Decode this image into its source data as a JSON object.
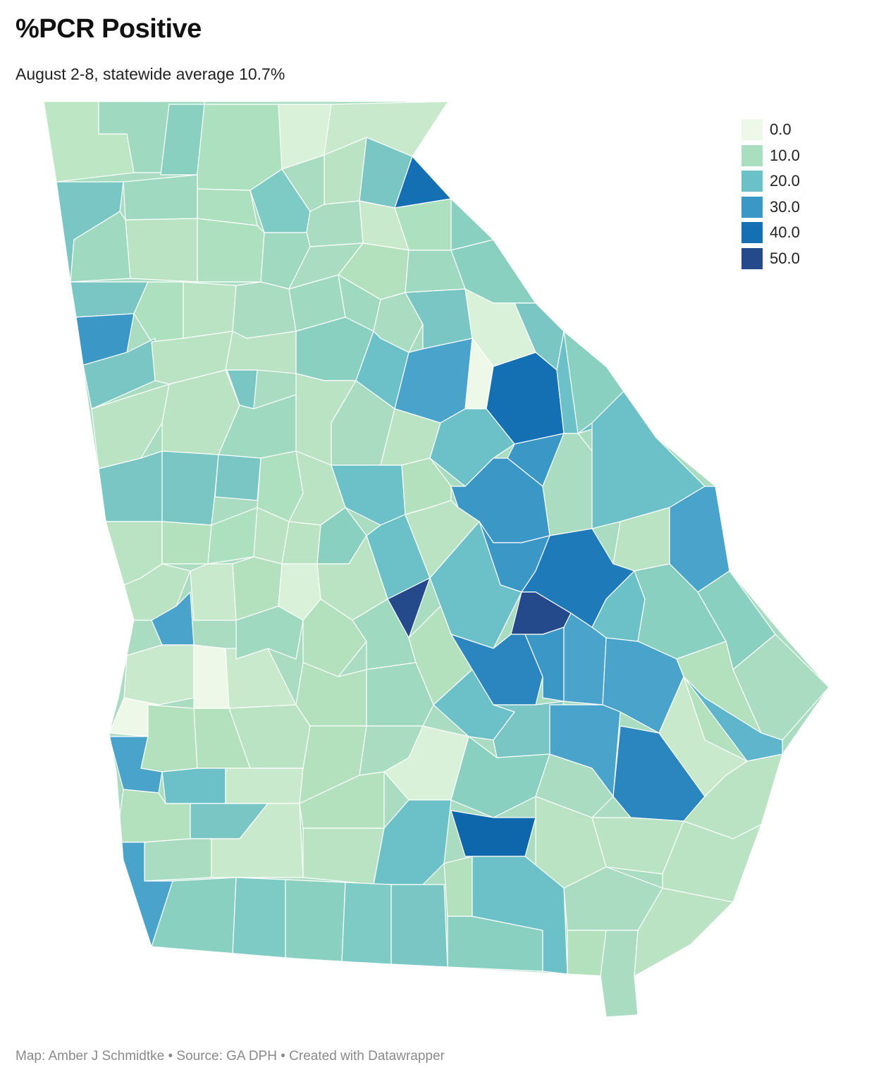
{
  "header": {
    "title": "%PCR Positive",
    "subtitle": "August 2-8, statewide average 10.7%"
  },
  "legend": {
    "items": [
      {
        "label": "0.0",
        "color": "#eef8e8"
      },
      {
        "label": "10.0",
        "color": "#a9dfbf"
      },
      {
        "label": "20.0",
        "color": "#6cc0c7"
      },
      {
        "label": "30.0",
        "color": "#3b97c6"
      },
      {
        "label": "40.0",
        "color": "#1570b3"
      },
      {
        "label": "50.0",
        "color": "#254a8c"
      }
    ]
  },
  "footer": {
    "credit": "Map: Amber J Schmidtke • Source: GA DPH • Created with Datawrapper"
  },
  "map": {
    "region": "Georgia counties",
    "border_color": "#ffffff"
  }
}
